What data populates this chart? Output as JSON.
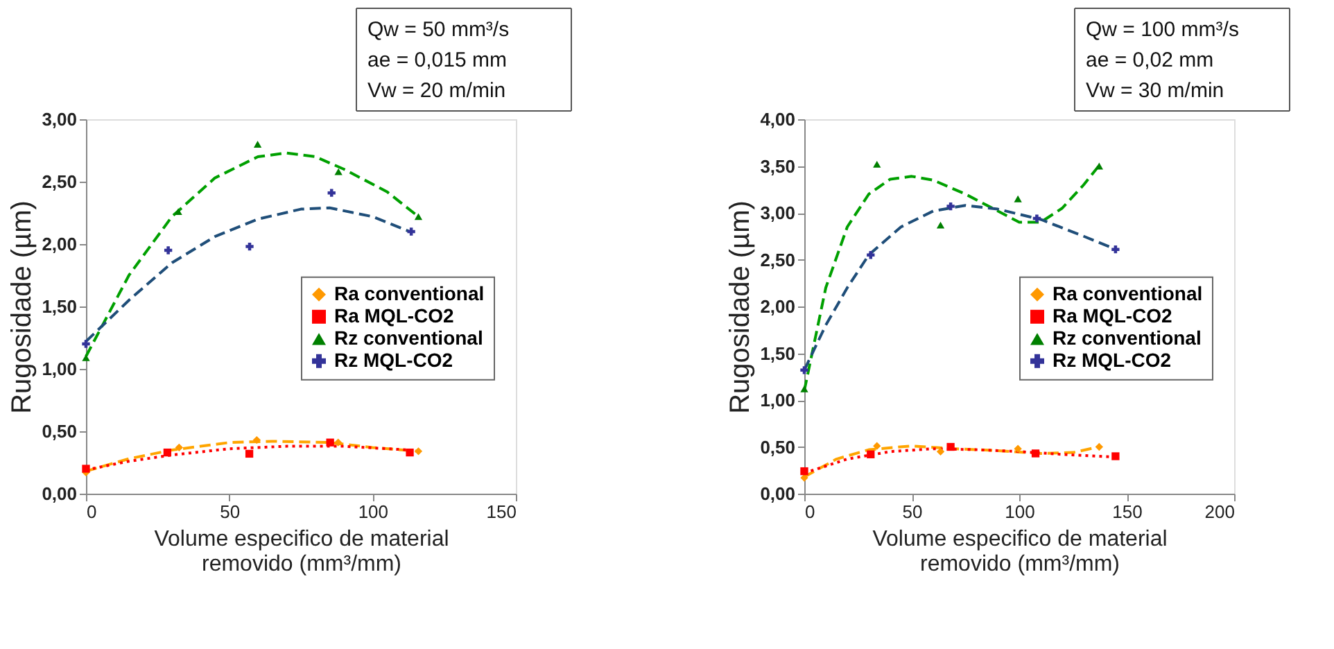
{
  "chart_data": [
    {
      "type": "scatter",
      "xlabel": "Volume especifico de material removido (mm³/mm)",
      "ylabel": "Rugosidade (µm)",
      "xlim": [
        0,
        150
      ],
      "xticks": [
        0,
        50,
        100,
        150
      ],
      "ylim": [
        0,
        3
      ],
      "yticks": [
        {
          "value": 0,
          "label": "0,00"
        },
        {
          "value": 0.5,
          "label": "0,50"
        },
        {
          "value": 1,
          "label": "1,00"
        },
        {
          "value": 1.5,
          "label": "1,50"
        },
        {
          "value": 2,
          "label": "2,00"
        },
        {
          "value": 2.5,
          "label": "2,50"
        },
        {
          "value": 3,
          "label": "3,00"
        }
      ],
      "grid": false,
      "legend": "right",
      "annotations": [
        "Qw = 50 mm³/s",
        "ae = 0,015 mm",
        "Vw = 20 m/min"
      ],
      "series": [
        {
          "name": "Ra conventional",
          "type": "scatter",
          "marker": "diamond",
          "color": "#ff9900",
          "x": [
            0,
            32.5,
            59.6,
            88,
            116
          ],
          "values": [
            0.17,
            0.37,
            0.43,
            0.41,
            0.34
          ]
        },
        {
          "name": "Ra MQL-CO2",
          "type": "scatter",
          "marker": "square",
          "color": "#ff0000",
          "x": [
            0,
            28.4,
            57,
            85.2,
            113
          ],
          "values": [
            0.2,
            0.33,
            0.32,
            0.41,
            0.33
          ]
        },
        {
          "name": "Rz conventional",
          "type": "scatter",
          "marker": "triangle",
          "color": "#008000",
          "x": [
            0,
            32.2,
            59.9,
            88.1,
            116
          ],
          "values": [
            1.09,
            2.26,
            2.8,
            2.58,
            2.22
          ]
        },
        {
          "name": "Rz MQL-CO2",
          "type": "scatter",
          "marker": "cross",
          "color": "#333399",
          "x": [
            0,
            28.7,
            57.1,
            85.7,
            113.5
          ],
          "values": [
            1.2,
            1.95,
            1.98,
            2.41,
            2.1
          ]
        },
        {
          "type": "line",
          "line_style": "dashed",
          "color": "#ffa500",
          "x": [
            0,
            15,
            30,
            50,
            65,
            85,
            100,
            116
          ],
          "values": [
            0.18,
            0.28,
            0.35,
            0.41,
            0.42,
            0.41,
            0.37,
            0.34
          ]
        },
        {
          "type": "line",
          "line_style": "dotted",
          "color": "#ff0000",
          "x": [
            0,
            15,
            30,
            50,
            70,
            90,
            113
          ],
          "values": [
            0.19,
            0.26,
            0.31,
            0.36,
            0.38,
            0.38,
            0.35
          ]
        },
        {
          "type": "line",
          "line_style": "dashed",
          "color": "#00a000",
          "x": [
            0,
            15,
            30,
            45,
            60,
            70,
            80,
            90,
            105,
            116
          ],
          "values": [
            1.1,
            1.75,
            2.22,
            2.53,
            2.7,
            2.73,
            2.7,
            2.6,
            2.42,
            2.22
          ]
        },
        {
          "type": "line",
          "line_style": "dashed",
          "color": "#1f4e79",
          "x": [
            0,
            15,
            30,
            45,
            60,
            75,
            85,
            100,
            113
          ],
          "values": [
            1.22,
            1.55,
            1.85,
            2.06,
            2.2,
            2.28,
            2.29,
            2.22,
            2.1
          ]
        }
      ]
    },
    {
      "type": "scatter",
      "xlabel": "Volume especifico de material removido (mm³/mm)",
      "ylabel": "Rugosidade (µm)",
      "xlim": [
        0,
        200
      ],
      "xticks": [
        0,
        50,
        100,
        150,
        200
      ],
      "ylim": [
        0,
        4
      ],
      "yticks": [
        {
          "value": 0,
          "label": "0,00"
        },
        {
          "value": 0.5,
          "label": "0,50"
        },
        {
          "value": 1,
          "label": "1,00"
        },
        {
          "value": 1.5,
          "label": "1,50"
        },
        {
          "value": 2,
          "label": "2,00"
        },
        {
          "value": 2.5,
          "label": "2,50"
        },
        {
          "value": 3,
          "label": "3,00"
        },
        {
          "value": 3.5,
          "label": "3,50"
        },
        {
          "value": 4,
          "label": "4,00"
        }
      ],
      "grid": false,
      "legend": "right",
      "annotations": [
        "Qw = 100 mm³/s",
        "ae = 0,02 mm",
        "Vw = 30 m/min"
      ],
      "series": [
        {
          "name": "Ra conventional",
          "type": "scatter",
          "marker": "diamond",
          "color": "#ff9900",
          "x": [
            0,
            33.8,
            63.4,
            99.4,
            137.2
          ],
          "values": [
            0.17,
            0.51,
            0.45,
            0.48,
            0.5
          ]
        },
        {
          "name": "Ra MQL-CO2",
          "type": "scatter",
          "marker": "square",
          "color": "#ff0000",
          "x": [
            0,
            30.9,
            68.1,
            107.6,
            144.8
          ],
          "values": [
            0.24,
            0.42,
            0.5,
            0.43,
            0.4
          ]
        },
        {
          "name": "Rz conventional",
          "type": "scatter",
          "marker": "triangle",
          "color": "#008000",
          "x": [
            0,
            33.8,
            63.4,
            99.4,
            137.2
          ],
          "values": [
            1.12,
            3.52,
            2.87,
            3.15,
            3.5
          ]
        },
        {
          "name": "Rz MQL-CO2",
          "type": "scatter",
          "marker": "cross",
          "color": "#333399",
          "x": [
            0,
            30.9,
            68.1,
            108.2,
            144.8
          ],
          "values": [
            1.32,
            2.55,
            3.07,
            2.94,
            2.61
          ]
        },
        {
          "type": "line",
          "line_style": "dashed",
          "color": "#ffa500",
          "x": [
            0,
            15,
            30,
            50,
            70,
            90,
            110,
            125,
            137
          ],
          "values": [
            0.18,
            0.37,
            0.47,
            0.51,
            0.48,
            0.46,
            0.43,
            0.44,
            0.5
          ]
        },
        {
          "type": "line",
          "line_style": "dotted",
          "color": "#ff0000",
          "x": [
            0,
            20,
            40,
            60,
            80,
            100,
            120,
            145
          ],
          "values": [
            0.22,
            0.37,
            0.45,
            0.48,
            0.47,
            0.45,
            0.42,
            0.39
          ]
        },
        {
          "type": "line",
          "line_style": "dashed",
          "color": "#00a000",
          "x": [
            0,
            10,
            20,
            30,
            40,
            50,
            60,
            75,
            90,
            100,
            110,
            120,
            130,
            137
          ],
          "values": [
            1.1,
            2.2,
            2.85,
            3.2,
            3.36,
            3.39,
            3.35,
            3.2,
            3.02,
            2.9,
            2.9,
            3.05,
            3.3,
            3.5
          ]
        },
        {
          "type": "line",
          "line_style": "dashed",
          "color": "#1f4e79",
          "x": [
            0,
            10,
            20,
            30,
            45,
            60,
            75,
            90,
            110,
            130,
            145
          ],
          "values": [
            1.32,
            1.8,
            2.2,
            2.55,
            2.85,
            3.02,
            3.08,
            3.04,
            2.93,
            2.75,
            2.61
          ]
        }
      ]
    }
  ]
}
